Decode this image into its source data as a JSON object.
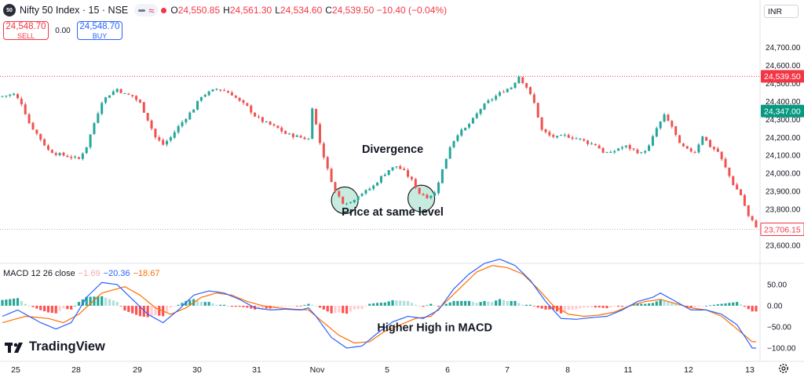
{
  "header": {
    "symbol_badge": "50",
    "symbol_title": "Nifty 50 Index · 15 · NSE",
    "ohlc": [
      {
        "k": "O",
        "v": "24,550.85"
      },
      {
        "k": "H",
        "v": "24,561.30"
      },
      {
        "k": "L",
        "v": "24,534.60"
      },
      {
        "k": "C",
        "v": "24,539.50 −10.40 (−0.04%)"
      }
    ]
  },
  "trade": {
    "sell_price": "24,548.70",
    "sell_label": "SELL",
    "spread": "0.00",
    "buy_price": "24,548.70",
    "buy_label": "BUY"
  },
  "currency": "INR",
  "macd_legend": {
    "name": "MACD 12 26 close",
    "hist": "−1.69",
    "macd": "−20.36",
    "signal": "−18.67"
  },
  "brand": "TradingView",
  "colors": {
    "up": "#26a69a",
    "down": "#ef5350",
    "hist_up": "#26a69a",
    "hist_up_light": "#b2dfdb",
    "hist_down": "#ff5252",
    "hist_down_light": "#ffcdd2",
    "macd_line": "#2962ff",
    "signal_line": "#ff6d00",
    "circle_fill": "#c8ebe0"
  },
  "chart_data": [
    {
      "type": "candlestick",
      "name": "Nifty 50 Index",
      "x_ticks": [
        "25",
        "28",
        "29",
        "30",
        "31",
        "Nov",
        "5",
        "6",
        "7",
        "8",
        "11",
        "12",
        "13"
      ],
      "y_ticks": [
        "23,600.00",
        "23,700.00",
        "23,800.00",
        "23,900.00",
        "24,000.00",
        "24,100.00",
        "24,200.00",
        "24,300.00",
        "24,400.00",
        "24,500.00",
        "24,600.00",
        "24,700.00"
      ],
      "ylim": [
        23560,
        24790
      ],
      "price_labels": [
        {
          "value": 24539.5,
          "text": "24,539.50",
          "style": "red"
        },
        {
          "value": 24347,
          "text": "24,347.00",
          "style": "green"
        },
        {
          "value": 23706.15,
          "text": "23,706.15",
          "style": "red-outline"
        }
      ],
      "close_path": [
        [
          0,
          24430
        ],
        [
          3,
          24440
        ],
        [
          5,
          24390
        ],
        [
          7,
          24280
        ],
        [
          10,
          24190
        ],
        [
          12,
          24130
        ],
        [
          14,
          24110
        ],
        [
          16,
          24100
        ],
        [
          18,
          24090
        ],
        [
          20,
          24080
        ],
        [
          22,
          24150
        ],
        [
          24,
          24280
        ],
        [
          26,
          24400
        ],
        [
          28,
          24440
        ],
        [
          30,
          24470
        ],
        [
          32,
          24440
        ],
        [
          34,
          24430
        ],
        [
          36,
          24390
        ],
        [
          38,
          24300
        ],
        [
          40,
          24200
        ],
        [
          42,
          24160
        ],
        [
          44,
          24200
        ],
        [
          46,
          24260
        ],
        [
          48,
          24310
        ],
        [
          50,
          24360
        ],
        [
          52,
          24430
        ],
        [
          54,
          24450
        ],
        [
          56,
          24470
        ],
        [
          58,
          24460
        ],
        [
          60,
          24440
        ],
        [
          62,
          24400
        ],
        [
          64,
          24370
        ],
        [
          66,
          24320
        ],
        [
          68,
          24290
        ],
        [
          70,
          24270
        ],
        [
          72,
          24250
        ],
        [
          74,
          24220
        ],
        [
          76,
          24210
        ],
        [
          78,
          24200
        ],
        [
          80,
          24190
        ],
        [
          81,
          24370
        ],
        [
          83,
          24170
        ],
        [
          85,
          24020
        ],
        [
          87,
          23900
        ],
        [
          89,
          23840
        ],
        [
          91,
          23840
        ],
        [
          93,
          23880
        ],
        [
          95,
          23900
        ],
        [
          97,
          23930
        ],
        [
          99,
          23980
        ],
        [
          101,
          24020
        ],
        [
          103,
          24040
        ],
        [
          105,
          24010
        ],
        [
          107,
          23960
        ],
        [
          109,
          23890
        ],
        [
          111,
          23870
        ],
        [
          113,
          23890
        ],
        [
          115,
          24020
        ],
        [
          117,
          24150
        ],
        [
          119,
          24220
        ],
        [
          121,
          24250
        ],
        [
          123,
          24300
        ],
        [
          125,
          24360
        ],
        [
          127,
          24400
        ],
        [
          129,
          24430
        ],
        [
          131,
          24460
        ],
        [
          133,
          24480
        ],
        [
          135,
          24540
        ],
        [
          137,
          24480
        ],
        [
          139,
          24390
        ],
        [
          141,
          24240
        ],
        [
          143,
          24210
        ],
        [
          145,
          24200
        ],
        [
          147,
          24210
        ],
        [
          149,
          24200
        ],
        [
          151,
          24190
        ],
        [
          153,
          24170
        ],
        [
          155,
          24160
        ],
        [
          157,
          24120
        ],
        [
          159,
          24110
        ],
        [
          161,
          24140
        ],
        [
          163,
          24150
        ],
        [
          165,
          24130
        ],
        [
          167,
          24110
        ],
        [
          169,
          24150
        ],
        [
          171,
          24250
        ],
        [
          173,
          24320
        ],
        [
          175,
          24260
        ],
        [
          177,
          24160
        ],
        [
          179,
          24130
        ],
        [
          181,
          24120
        ],
        [
          183,
          24210
        ],
        [
          185,
          24150
        ],
        [
          187,
          24120
        ],
        [
          189,
          24030
        ],
        [
          191,
          23940
        ],
        [
          193,
          23880
        ],
        [
          195,
          23760
        ],
        [
          197,
          23706
        ]
      ],
      "annotations": [
        {
          "text": "Divergence",
          "x": 102,
          "y": 24115
        },
        {
          "text": "Price at same level",
          "x": 102,
          "y": 23765
        }
      ],
      "circles": [
        {
          "x": 89.5,
          "y": 23850
        },
        {
          "x": 109.5,
          "y": 23860
        }
      ]
    },
    {
      "type": "macd",
      "name": "MACD 12 26 close",
      "ylim": [
        -112,
        88
      ],
      "y_ticks": [
        "50.00",
        "0.00",
        "−50.00",
        "−100.00"
      ],
      "macd_path": [
        [
          0,
          -25
        ],
        [
          4,
          -10
        ],
        [
          10,
          -40
        ],
        [
          14,
          -55
        ],
        [
          18,
          -40
        ],
        [
          22,
          20
        ],
        [
          26,
          55
        ],
        [
          30,
          50
        ],
        [
          34,
          15
        ],
        [
          38,
          -20
        ],
        [
          42,
          -40
        ],
        [
          46,
          -10
        ],
        [
          50,
          25
        ],
        [
          54,
          35
        ],
        [
          58,
          30
        ],
        [
          62,
          15
        ],
        [
          66,
          -5
        ],
        [
          70,
          -10
        ],
        [
          74,
          -8
        ],
        [
          78,
          -10
        ],
        [
          80,
          -5
        ],
        [
          82,
          -25
        ],
        [
          86,
          -75
        ],
        [
          90,
          -100
        ],
        [
          94,
          -95
        ],
        [
          98,
          -65
        ],
        [
          102,
          -38
        ],
        [
          106,
          -25
        ],
        [
          110,
          -30
        ],
        [
          114,
          -10
        ],
        [
          118,
          40
        ],
        [
          122,
          75
        ],
        [
          126,
          100
        ],
        [
          130,
          110
        ],
        [
          134,
          95
        ],
        [
          138,
          60
        ],
        [
          142,
          10
        ],
        [
          146,
          -30
        ],
        [
          150,
          -32
        ],
        [
          154,
          -28
        ],
        [
          158,
          -25
        ],
        [
          162,
          -10
        ],
        [
          166,
          10
        ],
        [
          170,
          20
        ],
        [
          172,
          30
        ],
        [
          176,
          10
        ],
        [
          180,
          -10
        ],
        [
          184,
          -10
        ],
        [
          188,
          -20
        ],
        [
          192,
          -45
        ],
        [
          196,
          -100
        ]
      ],
      "signal_path": [
        [
          0,
          -40
        ],
        [
          6,
          -25
        ],
        [
          12,
          -30
        ],
        [
          16,
          -40
        ],
        [
          20,
          -20
        ],
        [
          26,
          30
        ],
        [
          32,
          45
        ],
        [
          36,
          25
        ],
        [
          40,
          -5
        ],
        [
          44,
          -20
        ],
        [
          48,
          -5
        ],
        [
          52,
          20
        ],
        [
          56,
          30
        ],
        [
          60,
          25
        ],
        [
          64,
          10
        ],
        [
          68,
          0
        ],
        [
          72,
          -5
        ],
        [
          76,
          -8
        ],
        [
          80,
          -10
        ],
        [
          84,
          -40
        ],
        [
          88,
          -70
        ],
        [
          92,
          -88
        ],
        [
          96,
          -85
        ],
        [
          100,
          -60
        ],
        [
          104,
          -45
        ],
        [
          108,
          -30
        ],
        [
          112,
          -25
        ],
        [
          116,
          10
        ],
        [
          120,
          45
        ],
        [
          124,
          80
        ],
        [
          128,
          95
        ],
        [
          132,
          90
        ],
        [
          136,
          75
        ],
        [
          140,
          40
        ],
        [
          144,
          0
        ],
        [
          148,
          -20
        ],
        [
          152,
          -25
        ],
        [
          156,
          -22
        ],
        [
          160,
          -15
        ],
        [
          164,
          0
        ],
        [
          168,
          10
        ],
        [
          172,
          15
        ],
        [
          176,
          5
        ],
        [
          180,
          -5
        ],
        [
          184,
          -10
        ],
        [
          188,
          -25
        ],
        [
          192,
          -55
        ],
        [
          196,
          -85
        ]
      ],
      "annotations": [
        {
          "text": "Higher High in MACD",
          "x": 113,
          "y": -60
        }
      ]
    }
  ]
}
